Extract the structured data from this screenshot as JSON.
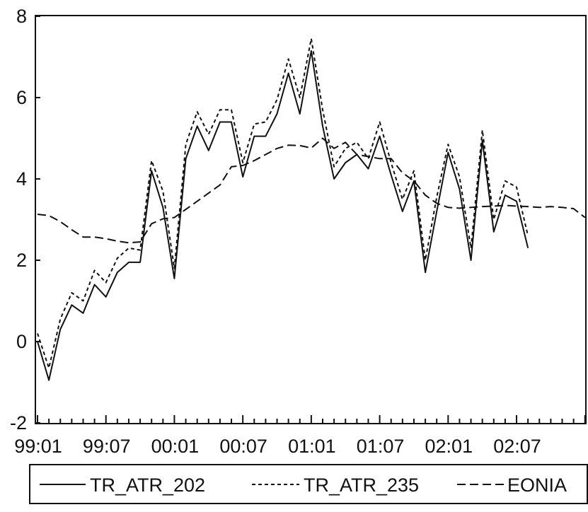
{
  "chart_data": {
    "type": "line",
    "title": "",
    "xlabel": "",
    "ylabel": "",
    "ylim": [
      -2,
      8
    ],
    "yticks": [
      "8",
      "6",
      "4",
      "2",
      "0",
      "-2"
    ],
    "xtick_labels": [
      "99:01",
      "99:07",
      "00:01",
      "00:07",
      "01:01",
      "01:07",
      "02:01",
      "02:07"
    ],
    "x_period": {
      "start": "1999-01",
      "end": "2003-01",
      "frequency": "monthly"
    },
    "grid": false,
    "legend": {
      "placement": "bottom"
    },
    "x": [
      "1999-01",
      "1999-02",
      "1999-03",
      "1999-04",
      "1999-05",
      "1999-06",
      "1999-07",
      "1999-08",
      "1999-09",
      "1999-10",
      "1999-11",
      "1999-12",
      "2000-01",
      "2000-02",
      "2000-03",
      "2000-04",
      "2000-05",
      "2000-06",
      "2000-07",
      "2000-08",
      "2000-09",
      "2000-10",
      "2000-11",
      "2000-12",
      "2001-01",
      "2001-02",
      "2001-03",
      "2001-04",
      "2001-05",
      "2001-06",
      "2001-07",
      "2001-08",
      "2001-09",
      "2001-10",
      "2001-11",
      "2001-12",
      "2002-01",
      "2002-02",
      "2002-03",
      "2002-04",
      "2002-05",
      "2002-06",
      "2002-07",
      "2002-08",
      "2002-09",
      "2002-10",
      "2002-11",
      "2002-12",
      "2003-01"
    ],
    "series": [
      {
        "name": "TR_ATR_202",
        "dash": "solid",
        "values": [
          0.0,
          -0.95,
          0.3,
          0.9,
          0.7,
          1.4,
          1.1,
          1.7,
          1.95,
          1.95,
          4.2,
          3.3,
          1.55,
          4.5,
          5.3,
          4.7,
          5.4,
          5.4,
          4.05,
          5.05,
          5.05,
          5.6,
          6.6,
          5.6,
          7.15,
          5.3,
          4.0,
          4.4,
          4.6,
          4.25,
          5.05,
          4.1,
          3.2,
          3.95,
          1.7,
          3.2,
          4.65,
          3.75,
          2.0,
          4.95,
          2.7,
          3.6,
          3.45,
          2.3,
          null,
          null,
          null,
          null,
          null
        ]
      },
      {
        "name": "TR_ATR_235",
        "dash": "short",
        "values": [
          0.2,
          -0.65,
          0.55,
          1.2,
          1.0,
          1.75,
          1.45,
          2.05,
          2.3,
          2.25,
          4.45,
          3.7,
          1.8,
          4.85,
          5.65,
          5.1,
          5.7,
          5.7,
          4.4,
          5.35,
          5.4,
          5.95,
          6.95,
          6.0,
          7.45,
          5.7,
          4.3,
          4.75,
          4.9,
          4.5,
          5.4,
          4.4,
          3.5,
          4.2,
          2.0,
          3.55,
          4.85,
          4.05,
          2.3,
          5.2,
          3.0,
          3.95,
          3.8,
          2.6,
          null,
          null,
          null,
          null,
          null
        ]
      },
      {
        "name": "EONIA",
        "dash": "long",
        "values": [
          3.13,
          3.1,
          2.95,
          2.75,
          2.57,
          2.57,
          2.53,
          2.47,
          2.43,
          2.45,
          2.9,
          3.02,
          3.05,
          3.25,
          3.45,
          3.65,
          3.85,
          4.3,
          4.33,
          4.45,
          4.6,
          4.75,
          4.83,
          4.82,
          4.76,
          5.0,
          4.75,
          4.9,
          4.6,
          4.55,
          4.5,
          4.5,
          4.15,
          3.95,
          3.6,
          3.4,
          3.3,
          3.28,
          3.3,
          3.32,
          3.33,
          3.35,
          3.33,
          3.32,
          3.3,
          3.32,
          3.3,
          3.27,
          3.05
        ]
      }
    ]
  }
}
